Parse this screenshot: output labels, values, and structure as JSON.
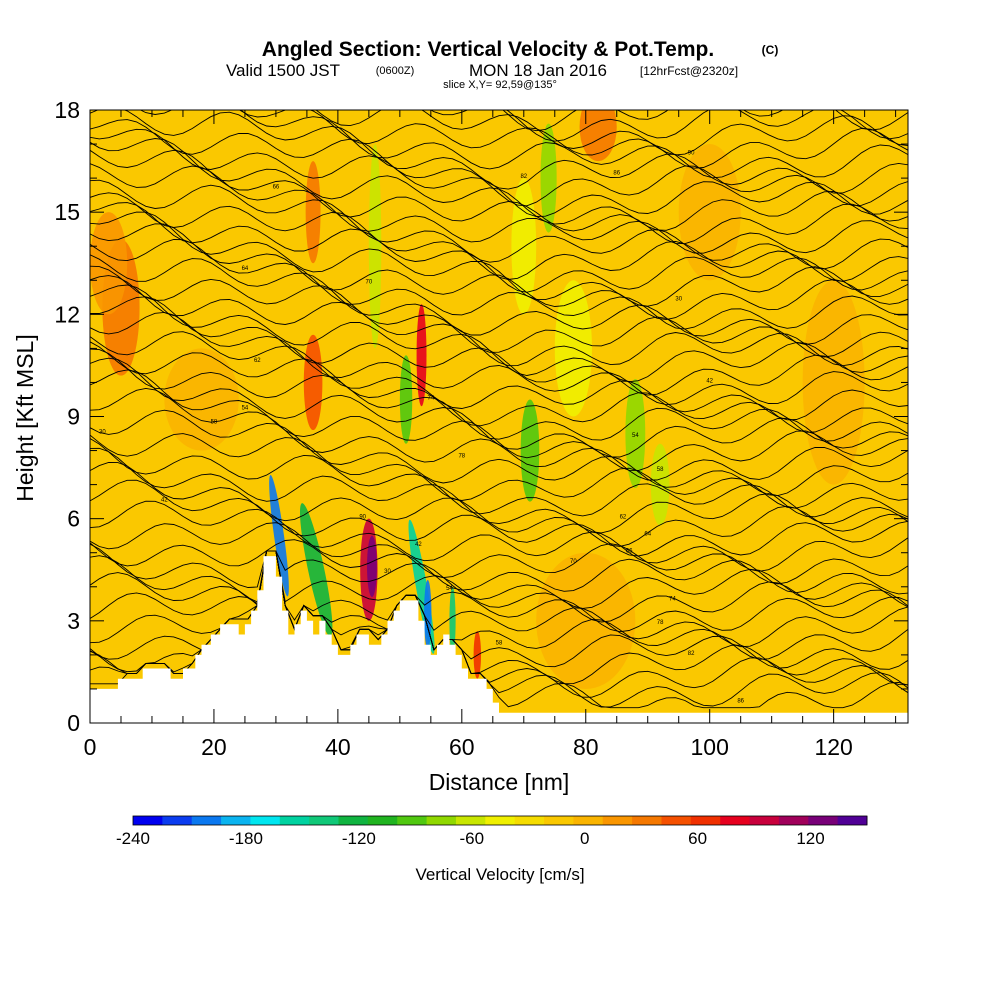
{
  "chart_data": {
    "type": "heatmap",
    "title": "Angled Section: Vertical Velocity & Pot.Temp.",
    "title_unit": "(C)",
    "subtitle": {
      "prefix": "Valid 1500 JST",
      "utc": "(0600Z)",
      "date": "MON 18 Jan 2016",
      "forecast": "[12hrFcst@2320z]"
    },
    "slice_text": "slice X,Y= 92,59@135°",
    "xlabel": "Distance [nm]",
    "ylabel": "Height [Kft MSL]",
    "xlim": [
      0,
      132
    ],
    "ylim": [
      0,
      18
    ],
    "x_ticks": [
      {
        "value": 0,
        "label": "0"
      },
      {
        "value": 20,
        "label": "20"
      },
      {
        "value": 40,
        "label": "40"
      },
      {
        "value": 60,
        "label": "60"
      },
      {
        "value": 80,
        "label": "80"
      },
      {
        "value": 100,
        "label": "100"
      },
      {
        "value": 120,
        "label": "120"
      }
    ],
    "y_ticks": [
      {
        "value": 0,
        "label": "0"
      },
      {
        "value": 3,
        "label": "3"
      },
      {
        "value": 6,
        "label": "6"
      },
      {
        "value": 9,
        "label": "9"
      },
      {
        "value": 12,
        "label": "12"
      },
      {
        "value": 15,
        "label": "15"
      },
      {
        "value": 18,
        "label": "18"
      }
    ],
    "terrain": [
      [
        0,
        1.0
      ],
      [
        4.5,
        1.0
      ],
      [
        4.5,
        1.3
      ],
      [
        8.5,
        1.3
      ],
      [
        8.5,
        1.6
      ],
      [
        13,
        1.6
      ],
      [
        13,
        1.3
      ],
      [
        15,
        1.3
      ],
      [
        15,
        1.6
      ],
      [
        17,
        1.6
      ],
      [
        17,
        2.0
      ],
      [
        18,
        2.0
      ],
      [
        18,
        2.3
      ],
      [
        19.5,
        2.3
      ],
      [
        19.5,
        2.6
      ],
      [
        21,
        2.6
      ],
      [
        21,
        2.9
      ],
      [
        24,
        2.9
      ],
      [
        24,
        2.6
      ],
      [
        25,
        2.6
      ],
      [
        25,
        2.9
      ],
      [
        26,
        2.9
      ],
      [
        26,
        3.3
      ],
      [
        27,
        3.3
      ],
      [
        27,
        3.9
      ],
      [
        28,
        3.9
      ],
      [
        28,
        4.9
      ],
      [
        30,
        4.9
      ],
      [
        30,
        4.3
      ],
      [
        31,
        4.3
      ],
      [
        31,
        3.3
      ],
      [
        32,
        3.3
      ],
      [
        32,
        2.6
      ],
      [
        33,
        2.6
      ],
      [
        33,
        2.9
      ],
      [
        34,
        2.9
      ],
      [
        34,
        3.3
      ],
      [
        35,
        3.3
      ],
      [
        35,
        3.0
      ],
      [
        36,
        3.0
      ],
      [
        36,
        2.6
      ],
      [
        37,
        2.6
      ],
      [
        37,
        3.0
      ],
      [
        38,
        3.0
      ],
      [
        38,
        2.6
      ],
      [
        39,
        2.6
      ],
      [
        39,
        2.3
      ],
      [
        40,
        2.3
      ],
      [
        40,
        2.0
      ],
      [
        42,
        2.0
      ],
      [
        42,
        2.3
      ],
      [
        43,
        2.3
      ],
      [
        43,
        2.6
      ],
      [
        45,
        2.6
      ],
      [
        45,
        2.3
      ],
      [
        47,
        2.3
      ],
      [
        47,
        2.6
      ],
      [
        48,
        2.6
      ],
      [
        48,
        3.0
      ],
      [
        49,
        3.0
      ],
      [
        49,
        3.3
      ],
      [
        50,
        3.3
      ],
      [
        50,
        3.6
      ],
      [
        53,
        3.6
      ],
      [
        53,
        3.0
      ],
      [
        54,
        3.0
      ],
      [
        54,
        2.3
      ],
      [
        55,
        2.3
      ],
      [
        55,
        2.0
      ],
      [
        56,
        2.0
      ],
      [
        56,
        2.3
      ],
      [
        57,
        2.3
      ],
      [
        57,
        2.6
      ],
      [
        58,
        2.6
      ],
      [
        58,
        2.3
      ],
      [
        59,
        2.3
      ],
      [
        59,
        2.0
      ],
      [
        60,
        2.0
      ],
      [
        60,
        1.6
      ],
      [
        61,
        1.6
      ],
      [
        61,
        1.3
      ],
      [
        64,
        1.3
      ],
      [
        64,
        1.0
      ],
      [
        65,
        1.0
      ],
      [
        65,
        0.6
      ],
      [
        66,
        0.6
      ],
      [
        66,
        0.3
      ],
      [
        75,
        0.3
      ],
      [
        75,
        0.3
      ],
      [
        132,
        0.3
      ]
    ],
    "colorbar": {
      "label": "Vertical Velocity [cm/s]",
      "min": -240,
      "max": 150,
      "tick_labels": [
        {
          "value": -240,
          "label": "-240"
        },
        {
          "value": -180,
          "label": "-180"
        },
        {
          "value": -120,
          "label": "-120"
        },
        {
          "value": -60,
          "label": "-60"
        },
        {
          "value": 0,
          "label": "0"
        },
        {
          "value": 60,
          "label": "60"
        },
        {
          "value": 120,
          "label": "120"
        }
      ],
      "colors": [
        "#0000f0",
        "#0a3cf0",
        "#0a78f0",
        "#0ab4f0",
        "#00e6f0",
        "#00d2a0",
        "#10c878",
        "#10b440",
        "#20b420",
        "#50c810",
        "#90d800",
        "#c8e600",
        "#f0f000",
        "#f5dc00",
        "#fac800",
        "#fab400",
        "#fa9600",
        "#f57800",
        "#f55000",
        "#f03000",
        "#e6001e",
        "#c8003c",
        "#a0005a",
        "#780078",
        "#500096"
      ]
    },
    "contour_labels": [
      "30",
      "42",
      "54",
      "58",
      "62",
      "64",
      "66",
      "70",
      "74",
      "78",
      "82",
      "86",
      "90"
    ]
  }
}
